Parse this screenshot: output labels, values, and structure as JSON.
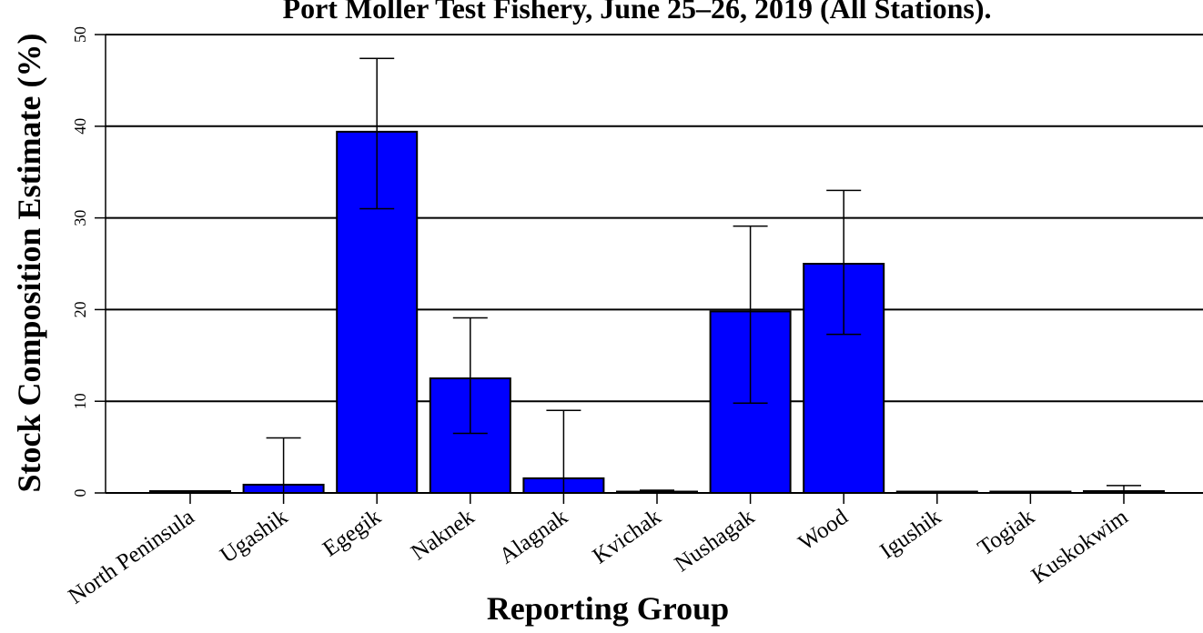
{
  "chart_data": {
    "type": "bar",
    "title": "Port Moller Test Fishery, June 25–26, 2019 (All Stations).",
    "xlabel": "Reporting Group",
    "ylabel": "Stock Composition Estimate (%)",
    "ylim": [
      0,
      50
    ],
    "yticks": [
      0,
      10,
      20,
      30,
      40,
      50
    ],
    "grid": true,
    "categories": [
      "North Peninsula",
      "Ugashik",
      "Egegik",
      "Naknek",
      "Alagnak",
      "Kvichak",
      "Nushagak",
      "Wood",
      "Igushik",
      "Togiak",
      "Kuskokwim"
    ],
    "values": [
      0.2,
      0.9,
      39.4,
      12.5,
      1.6,
      0.1,
      19.8,
      25.0,
      0.0,
      0.0,
      0.2
    ],
    "error_low": [
      0.0,
      0.0,
      31.0,
      6.5,
      0.0,
      0.0,
      9.8,
      17.3,
      0.0,
      0.0,
      0.0
    ],
    "error_high": [
      0.2,
      6.0,
      47.4,
      19.1,
      9.0,
      0.3,
      29.1,
      33.0,
      0.1,
      0.0,
      0.8
    ],
    "bar_color": "#0000ff",
    "edge_color": "#000000"
  }
}
